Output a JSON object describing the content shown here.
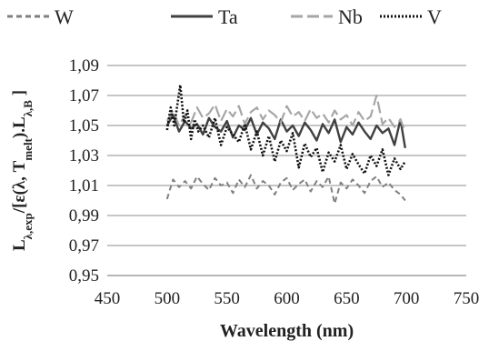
{
  "chart_data": {
    "type": "line",
    "xlabel": "Wavelength (nm)",
    "ylabel": {
      "parts": [
        {
          "t": "L",
          "sub": false
        },
        {
          "t": "λ,exp",
          "sub": true
        },
        {
          "t": "/[ε(λ, T",
          "sub": false
        },
        {
          "t": "melt",
          "sub": true
        },
        {
          "t": ").L",
          "sub": false
        },
        {
          "t": "λ,B",
          "sub": true
        },
        {
          "t": " ]",
          "sub": false
        }
      ]
    },
    "xlim": [
      450,
      750
    ],
    "ylim": [
      0.95,
      1.09
    ],
    "x_ticks": [
      450,
      500,
      550,
      600,
      650,
      700,
      750
    ],
    "x_tick_labels": [
      "450",
      "500",
      "550",
      "600",
      "650",
      "700",
      "750"
    ],
    "y_ticks": [
      0.95,
      0.97,
      0.99,
      1.01,
      1.03,
      1.05,
      1.07,
      1.09
    ],
    "y_tick_labels": [
      "0,95",
      "0,97",
      "0,99",
      "1,01",
      "1,03",
      "1,05",
      "1,07",
      "1,09"
    ],
    "grid": {
      "horizontal": true,
      "vertical": false
    },
    "legend_position": "top",
    "series": [
      {
        "name": "W",
        "color": "#808080",
        "dash": "dashed",
        "x": [
          500,
          505,
          510,
          515,
          520,
          525,
          530,
          535,
          540,
          545,
          550,
          555,
          560,
          565,
          570,
          575,
          580,
          585,
          590,
          595,
          600,
          605,
          610,
          615,
          620,
          625,
          630,
          635,
          640,
          645,
          650,
          655,
          660,
          665,
          670,
          675,
          680,
          685,
          690,
          695,
          699
        ],
        "y": [
          1.001,
          1.014,
          1.009,
          1.013,
          1.008,
          1.016,
          1.011,
          1.007,
          1.015,
          1.01,
          1.012,
          1.005,
          1.014,
          1.009,
          1.017,
          1.008,
          1.013,
          1.01,
          1.004,
          1.012,
          1.015,
          1.007,
          1.011,
          1.014,
          1.006,
          1.013,
          1.009,
          1.016,
          0.998,
          1.012,
          1.008,
          1.014,
          1.01,
          1.005,
          1.013,
          1.016,
          1.009,
          1.012,
          1.007,
          1.004,
          1.0
        ]
      },
      {
        "name": "Ta",
        "color": "#404040",
        "dash": "solid",
        "x": [
          500,
          505,
          510,
          515,
          520,
          525,
          530,
          535,
          540,
          545,
          550,
          555,
          560,
          565,
          570,
          575,
          580,
          585,
          590,
          595,
          600,
          605,
          610,
          615,
          620,
          625,
          630,
          635,
          640,
          645,
          650,
          655,
          660,
          665,
          670,
          675,
          680,
          685,
          690,
          695,
          699
        ],
        "y": [
          1.05,
          1.057,
          1.046,
          1.053,
          1.048,
          1.051,
          1.044,
          1.055,
          1.049,
          1.046,
          1.053,
          1.042,
          1.05,
          1.047,
          1.055,
          1.044,
          1.052,
          1.048,
          1.041,
          1.054,
          1.046,
          1.05,
          1.043,
          1.052,
          1.047,
          1.04,
          1.051,
          1.045,
          1.054,
          1.039,
          1.049,
          1.044,
          1.052,
          1.046,
          1.041,
          1.05,
          1.045,
          1.048,
          1.037,
          1.054,
          1.035
        ]
      },
      {
        "name": "Nb",
        "color": "#a6a6a6",
        "dash": "longdash",
        "x": [
          500,
          505,
          510,
          515,
          520,
          525,
          530,
          535,
          540,
          545,
          550,
          555,
          560,
          565,
          570,
          575,
          580,
          585,
          590,
          595,
          600,
          605,
          610,
          615,
          620,
          625,
          630,
          635,
          640,
          645,
          650,
          655,
          660,
          665,
          670,
          675,
          680,
          685,
          690,
          695,
          699
        ],
        "y": [
          1.053,
          1.06,
          1.05,
          1.057,
          1.052,
          1.062,
          1.055,
          1.058,
          1.064,
          1.053,
          1.061,
          1.056,
          1.063,
          1.051,
          1.059,
          1.062,
          1.054,
          1.06,
          1.057,
          1.052,
          1.063,
          1.056,
          1.059,
          1.053,
          1.061,
          1.055,
          1.058,
          1.052,
          1.06,
          1.054,
          1.057,
          1.05,
          1.059,
          1.053,
          1.056,
          1.07,
          1.051,
          1.055,
          1.049,
          1.054,
          1.046
        ]
      },
      {
        "name": "V",
        "color": "#111111",
        "dash": "dotted",
        "x": [
          500,
          503,
          506,
          509,
          511,
          514,
          517,
          520,
          523,
          526,
          530,
          535,
          540,
          545,
          550,
          555,
          560,
          565,
          570,
          575,
          580,
          585,
          590,
          595,
          600,
          605,
          610,
          615,
          620,
          625,
          630,
          635,
          640,
          645,
          650,
          655,
          660,
          665,
          670,
          675,
          680,
          685,
          690,
          695,
          699
        ],
        "y": [
          1.047,
          1.062,
          1.05,
          1.066,
          1.077,
          1.052,
          1.06,
          1.041,
          1.054,
          1.046,
          1.05,
          1.042,
          1.055,
          1.037,
          1.049,
          1.044,
          1.039,
          1.051,
          1.034,
          1.046,
          1.03,
          1.043,
          1.026,
          1.04,
          1.033,
          1.045,
          1.022,
          1.038,
          1.029,
          1.035,
          1.019,
          1.032,
          1.026,
          1.037,
          1.021,
          1.031,
          1.024,
          1.018,
          1.03,
          1.023,
          1.034,
          1.017,
          1.028,
          1.021,
          1.026
        ]
      }
    ]
  }
}
